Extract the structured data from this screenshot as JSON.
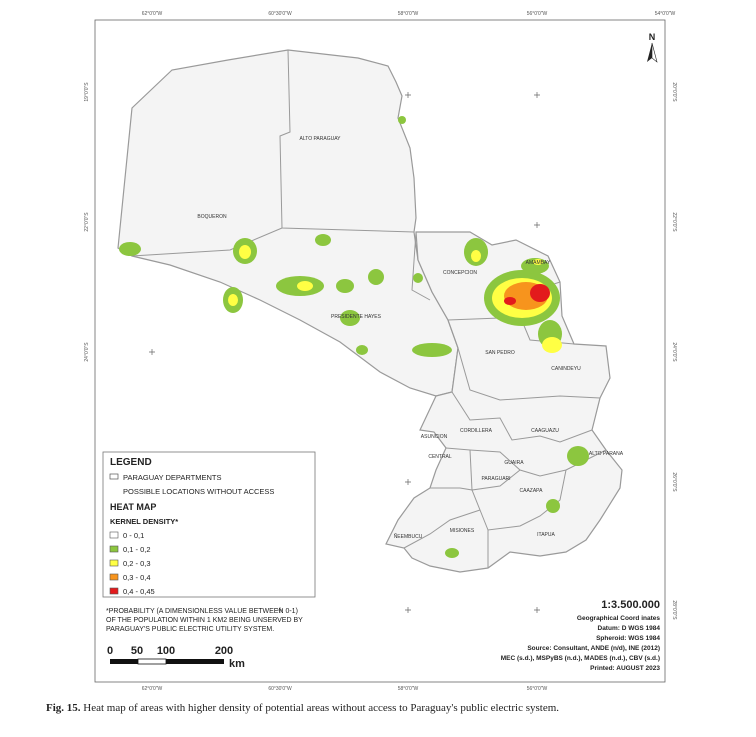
{
  "map": {
    "title_north": "N",
    "ticks_top": [
      "62°0'0\"W",
      "60°30'0\"W",
      "58°0'0\"W",
      "56°0'0\"W",
      "54°0'0\"W"
    ],
    "ticks_bottom": [
      "62°0'0\"W",
      "60°30'0\"W",
      "58°0'0\"W",
      "56°0'0\"W"
    ],
    "ticks_left": [
      "19°0'0\"S",
      "22°0'0\"S",
      "24°0'0\"S"
    ],
    "ticks_right": [
      "20°0'0\"S",
      "22°0'0\"S",
      "24°0'0\"S",
      "26°0'0\"S",
      "28°0'0\"S"
    ],
    "departments": {
      "alto_paraguay": "ALTO PARAGUAY",
      "boqueron": "BOQUERON",
      "presidente_hayes": "PRESIDENTE HAYES",
      "concepcion": "CONCEPCION",
      "amambay": "AMAMBAY",
      "san_pedro": "SAN PEDRO",
      "canindeyu": "CANINDEYU",
      "asuncion": "ASUNCION",
      "cordillera": "CORDILLERA",
      "caaguazu": "CAAGUAZU",
      "alto_parana": "ALTO PARANA",
      "central": "CENTRAL",
      "guaira": "GUAIRA",
      "paraguari": "PARAGUARI",
      "caazapa": "CAAZAPA",
      "misiones": "MISIONES",
      "neembucu": "ÑEEMBUCU",
      "itapua": "ITAPUA"
    }
  },
  "legend": {
    "title": "LEGEND",
    "departments_label": "PARAGUAY DEPARTMENTS",
    "possible_label": "POSSIBLE LOCATIONS WITHOUT ACCESS",
    "heat_map_label": "HEAT MAP",
    "kernel_label": "KERNEL DENSITY*",
    "classes": [
      {
        "label": "0 - 0,1",
        "color": "#ffffff"
      },
      {
        "label": "0,1 - 0,2",
        "color": "#8cc63f"
      },
      {
        "label": "0,2 - 0,3",
        "color": "#ffff44"
      },
      {
        "label": "0,3 - 0,4",
        "color": "#f7941d"
      },
      {
        "label": "0,4 - 0,45",
        "color": "#e31a1c"
      }
    ],
    "footnote_1": "*PROBABILITY (A DIMENSIONLESS VALUE BETWEEN 0-1)",
    "footnote_2": "OF THE POPULATION WITHIN 1 KM2 BEING UNSERVED BY",
    "footnote_3": "PARAGUAY'S PUBLIC ELECTRIC UTILITY SYSTEM."
  },
  "scale_bar": {
    "labels": [
      "0",
      "50",
      "100",
      "200"
    ],
    "unit": "km",
    "ratio": "1:3.500.000"
  },
  "info": {
    "line1": "Geographical Coord inates",
    "line2": "Datum: D WGS 1984",
    "line3": "Spheroid: WGS 1984",
    "line4": "Source: Consultant, ANDE (n/d), INE (2012)",
    "line5": "MEC (s.d.), MSPyBS (n.d.), MADES (n.d.), CBV (s.d.)",
    "line6": "Printed: AUGUST 2023"
  },
  "caption": {
    "label": "Fig. 15.",
    "text": "Heat map of areas with higher density of potential areas without access to Paraguay's public electric system."
  }
}
